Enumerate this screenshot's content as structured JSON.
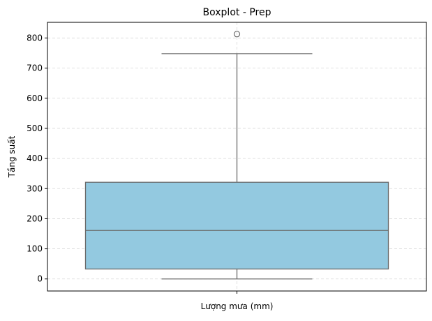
{
  "chart_data": {
    "type": "boxplot",
    "title": "Boxplot - Prep",
    "xlabel": "Lượng mưa (mm)",
    "ylabel": "Tầng suất",
    "ylim": [
      -40,
      852
    ],
    "yticks": [
      0,
      100,
      200,
      300,
      400,
      500,
      600,
      700,
      800
    ],
    "grid": true,
    "box": {
      "whisker_low": 0,
      "q1": 33,
      "median": 161,
      "q3": 321,
      "whisker_high": 748,
      "outliers": [
        813
      ]
    },
    "colors": {
      "box_fill": "#93c9e0",
      "line": "#6a6a6a",
      "grid": "#d8d8d8"
    }
  }
}
